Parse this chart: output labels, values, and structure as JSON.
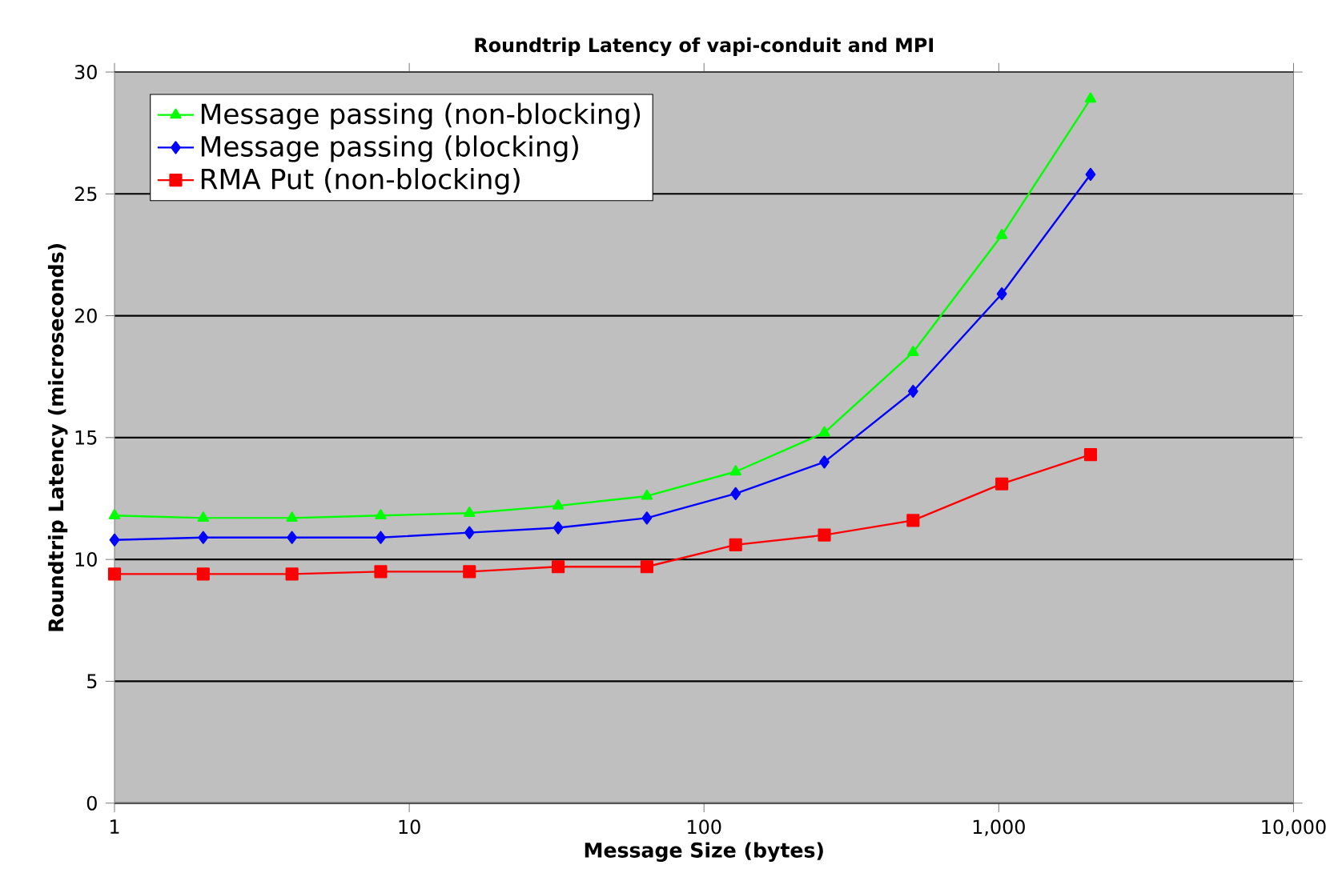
{
  "chart_data": {
    "type": "line",
    "title": "Roundtrip Latency of vapi-conduit and MPI",
    "xlabel": "Message Size (bytes)",
    "ylabel": "Roundtrip Latency (microseconds)",
    "x": [
      1,
      2,
      4,
      8,
      16,
      32,
      64,
      128,
      256,
      512,
      1024,
      2048
    ],
    "series": [
      {
        "name": "Message passing (non-blocking)",
        "color": "#00ff00",
        "marker": "triangle",
        "values": [
          11.8,
          11.7,
          11.7,
          11.8,
          11.9,
          12.2,
          12.6,
          13.6,
          15.2,
          18.5,
          23.3,
          28.9
        ]
      },
      {
        "name": "Message passing (blocking)",
        "color": "#0000ff",
        "marker": "diamond",
        "values": [
          10.8,
          10.9,
          10.9,
          10.9,
          11.1,
          11.3,
          11.7,
          12.7,
          14.0,
          16.9,
          20.9,
          25.8
        ]
      },
      {
        "name": "RMA Put (non-blocking)",
        "color": "#ff0000",
        "marker": "square",
        "values": [
          9.4,
          9.4,
          9.4,
          9.5,
          9.5,
          9.7,
          9.7,
          10.6,
          11.0,
          11.6,
          13.1,
          14.3
        ]
      }
    ],
    "log": "x",
    "xlim": [
      1,
      10000
    ],
    "xticks": [
      1,
      10,
      100,
      {
        "value": 1000,
        "label": "1,000"
      },
      {
        "value": 10000,
        "label": "10,000"
      }
    ],
    "ylim": [
      0,
      30
    ],
    "yticks": [
      0,
      5,
      10,
      15,
      20,
      25,
      30
    ],
    "grid": "y",
    "legend": "top left"
  }
}
